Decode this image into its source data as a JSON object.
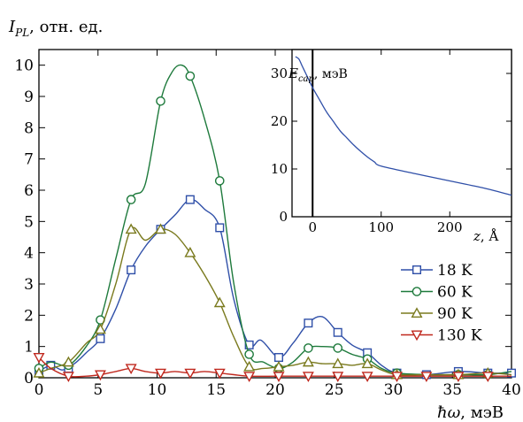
{
  "chart_data": [
    {
      "type": "line",
      "ylabel": "I_PL, отн. ед.",
      "ylabel_parts": {
        "sym": "I",
        "sub": "PL",
        "unit": ", отн. ед."
      },
      "xlabel": "ħω, мэВ",
      "xlabel_parts": {
        "sym": "ħω",
        "unit": ", мэВ"
      },
      "xlim": [
        0,
        40
      ],
      "ylim": [
        0,
        10.5
      ],
      "x_ticks": [
        0,
        5,
        10,
        15,
        20,
        25,
        30,
        35,
        40
      ],
      "y_ticks": [
        0,
        1,
        2,
        3,
        4,
        5,
        6,
        7,
        8,
        9,
        10
      ],
      "legend": "center-right",
      "series": [
        {
          "name": "18 K",
          "color": "#2f4fa8",
          "marker": "square",
          "points": [
            [
              0,
              0.2
            ],
            [
              1,
              0.4
            ],
            [
              2.5,
              0.3
            ],
            [
              5.2,
              1.25
            ],
            [
              7.8,
              3.45
            ],
            [
              10.3,
              4.75
            ],
            [
              12.8,
              5.7
            ],
            [
              15.3,
              4.8
            ],
            [
              17.8,
              1.05
            ],
            [
              20.3,
              0.65
            ],
            [
              22.8,
              1.75
            ],
            [
              25.3,
              1.45
            ],
            [
              27.8,
              0.8
            ],
            [
              30.3,
              0.15
            ],
            [
              32.8,
              0.1
            ],
            [
              35.5,
              0.2
            ],
            [
              38,
              0.15
            ],
            [
              40,
              0.15
            ]
          ],
          "curve": [
            [
              0,
              0.2
            ],
            [
              1,
              0.4
            ],
            [
              2,
              0.25
            ],
            [
              3,
              0.45
            ],
            [
              4,
              0.8
            ],
            [
              5.2,
              1.25
            ],
            [
              6.5,
              2.2
            ],
            [
              7.8,
              3.45
            ],
            [
              9,
              4.2
            ],
            [
              10.3,
              4.75
            ],
            [
              11.5,
              5.2
            ],
            [
              12.8,
              5.7
            ],
            [
              14,
              5.4
            ],
            [
              15.3,
              4.8
            ],
            [
              16.5,
              2.5
            ],
            [
              17.8,
              1.05
            ],
            [
              18.8,
              1.2
            ],
            [
              20.3,
              0.65
            ],
            [
              21.5,
              1.1
            ],
            [
              22.8,
              1.75
            ],
            [
              24,
              1.95
            ],
            [
              25.3,
              1.45
            ],
            [
              26.5,
              1.05
            ],
            [
              27.8,
              0.8
            ],
            [
              29,
              0.4
            ],
            [
              30.3,
              0.15
            ],
            [
              32.8,
              0.1
            ],
            [
              35.5,
              0.2
            ],
            [
              38,
              0.15
            ],
            [
              40,
              0.15
            ]
          ],
          "values_note_marker_indices": [
            0,
            2,
            5,
            7,
            9,
            11,
            13,
            15,
            17,
            18,
            20,
            22,
            24,
            26,
            27,
            28,
            29
          ]
        },
        {
          "name": "60 K",
          "color": "#1e7a3c",
          "marker": "circle",
          "points": [
            [
              0,
              0.3
            ],
            [
              2.5,
              0.4
            ],
            [
              5.2,
              1.85
            ],
            [
              7.8,
              5.7
            ],
            [
              10.3,
              8.85
            ],
            [
              12.8,
              9.65
            ],
            [
              15.3,
              6.3
            ],
            [
              17.8,
              0.75
            ],
            [
              20.3,
              0.3
            ],
            [
              22.8,
              0.95
            ],
            [
              25.3,
              0.95
            ],
            [
              27.8,
              0.6
            ],
            [
              30.3,
              0.15
            ],
            [
              35.5,
              0.1
            ],
            [
              38,
              0.1
            ]
          ],
          "curve": [
            [
              0,
              0.3
            ],
            [
              1,
              0.5
            ],
            [
              2.5,
              0.4
            ],
            [
              4,
              1.0
            ],
            [
              5.2,
              1.85
            ],
            [
              6.5,
              3.8
            ],
            [
              7.8,
              5.7
            ],
            [
              9,
              6.2
            ],
            [
              10.3,
              8.85
            ],
            [
              11.3,
              9.8
            ],
            [
              12.1,
              10.0
            ],
            [
              12.8,
              9.65
            ],
            [
              14,
              8.3
            ],
            [
              15.3,
              6.3
            ],
            [
              16.5,
              3.0
            ],
            [
              17.8,
              0.75
            ],
            [
              19,
              0.5
            ],
            [
              20.3,
              0.3
            ],
            [
              21.5,
              0.5
            ],
            [
              22.8,
              0.95
            ],
            [
              24,
              1.0
            ],
            [
              25.3,
              0.95
            ],
            [
              26.5,
              0.75
            ],
            [
              27.8,
              0.6
            ],
            [
              29,
              0.3
            ],
            [
              30.3,
              0.15
            ],
            [
              33,
              0.1
            ],
            [
              35.5,
              0.1
            ],
            [
              38,
              0.1
            ],
            [
              40,
              0.2
            ]
          ]
        },
        {
          "name": "90 K",
          "color": "#7a7a1e",
          "marker": "triangle-up",
          "points": [
            [
              0,
              0.15
            ],
            [
              2.5,
              0.5
            ],
            [
              5.2,
              1.55
            ],
            [
              7.8,
              4.75
            ],
            [
              10.3,
              4.75
            ],
            [
              12.8,
              4.0
            ],
            [
              15.3,
              2.4
            ],
            [
              17.8,
              0.35
            ],
            [
              20.3,
              0.35
            ],
            [
              22.8,
              0.5
            ],
            [
              25.3,
              0.45
            ],
            [
              27.8,
              0.45
            ],
            [
              30.3,
              0.1
            ],
            [
              35.5,
              0.1
            ],
            [
              38,
              0.15
            ]
          ],
          "curve": [
            [
              0,
              0.15
            ],
            [
              1,
              0.3
            ],
            [
              2.5,
              0.5
            ],
            [
              4,
              1.1
            ],
            [
              5.2,
              1.55
            ],
            [
              6.5,
              3.0
            ],
            [
              7.8,
              4.75
            ],
            [
              9,
              4.4
            ],
            [
              10.3,
              4.75
            ],
            [
              11.5,
              4.6
            ],
            [
              12.8,
              4.0
            ],
            [
              14,
              3.3
            ],
            [
              15.3,
              2.4
            ],
            [
              16.5,
              1.3
            ],
            [
              17.8,
              0.35
            ],
            [
              19,
              0.3
            ],
            [
              20.3,
              0.35
            ],
            [
              21.5,
              0.4
            ],
            [
              22.8,
              0.5
            ],
            [
              24,
              0.45
            ],
            [
              25.3,
              0.45
            ],
            [
              26.5,
              0.4
            ],
            [
              27.8,
              0.45
            ],
            [
              29,
              0.25
            ],
            [
              30.3,
              0.1
            ],
            [
              33,
              0.1
            ],
            [
              35.5,
              0.1
            ],
            [
              38,
              0.15
            ],
            [
              40,
              0.1
            ]
          ]
        },
        {
          "name": "130 K",
          "color": "#c0281e",
          "marker": "triangle-down",
          "points": [
            [
              0,
              0.65
            ],
            [
              2.5,
              0.05
            ],
            [
              5.2,
              0.1
            ],
            [
              7.8,
              0.3
            ],
            [
              10.3,
              0.15
            ],
            [
              12.8,
              0.15
            ],
            [
              15.3,
              0.15
            ],
            [
              17.8,
              0.05
            ],
            [
              20.3,
              0.05
            ],
            [
              22.8,
              0.05
            ],
            [
              25.3,
              0.05
            ],
            [
              27.8,
              0.05
            ],
            [
              30.3,
              0.05
            ],
            [
              32.8,
              0.05
            ],
            [
              35.5,
              0.05
            ],
            [
              38,
              0.05
            ]
          ],
          "curve": [
            [
              0,
              0.65
            ],
            [
              1,
              0.3
            ],
            [
              2.5,
              0.05
            ],
            [
              4,
              0.05
            ],
            [
              5.2,
              0.1
            ],
            [
              6.5,
              0.2
            ],
            [
              7.8,
              0.3
            ],
            [
              9,
              0.2
            ],
            [
              10.3,
              0.15
            ],
            [
              11.5,
              0.2
            ],
            [
              12.8,
              0.15
            ],
            [
              14,
              0.2
            ],
            [
              15.3,
              0.15
            ],
            [
              16.5,
              0.1
            ],
            [
              17.8,
              0.05
            ],
            [
              20.3,
              0.05
            ],
            [
              22.8,
              0.05
            ],
            [
              25.3,
              0.05
            ],
            [
              27.8,
              0.05
            ],
            [
              30.3,
              0.05
            ],
            [
              32.8,
              0.05
            ],
            [
              35.5,
              0.05
            ],
            [
              38,
              0.05
            ],
            [
              40,
              0.05
            ]
          ]
        }
      ]
    },
    {
      "type": "line",
      "inset": true,
      "ylabel": "E_cap, мэВ",
      "ylabel_parts": {
        "sym": "E",
        "sub": "cap",
        "unit": ", мэВ"
      },
      "xlabel": "z, Å",
      "xlabel_parts": {
        "sym": "z",
        "unit": ", Å"
      },
      "xlim": [
        -30,
        290
      ],
      "ylim": [
        0,
        35
      ],
      "x_ticks": [
        0,
        100,
        200
      ],
      "y_ticks": [
        0,
        10,
        20,
        30
      ],
      "vertical_line_at_x": 0,
      "series": [
        {
          "color": "#2f4fa8",
          "points": [
            [
              -25,
              33.5
            ],
            [
              -20,
              33.0
            ],
            [
              -15,
              31.5
            ],
            [
              -10,
              30.0
            ],
            [
              -5,
              28.5
            ],
            [
              0,
              27.0
            ],
            [
              10,
              24.5
            ],
            [
              20,
              22.0
            ],
            [
              30,
              20.0
            ],
            [
              40,
              18.0
            ],
            [
              50,
              16.5
            ],
            [
              60,
              15.0
            ],
            [
              70,
              13.7
            ],
            [
              80,
              12.5
            ],
            [
              90,
              11.5
            ],
            [
              100,
              10.6
            ],
            [
              150,
              9.0
            ],
            [
              200,
              7.5
            ],
            [
              250,
              6.0
            ],
            [
              290,
              4.5
            ]
          ]
        }
      ]
    }
  ]
}
